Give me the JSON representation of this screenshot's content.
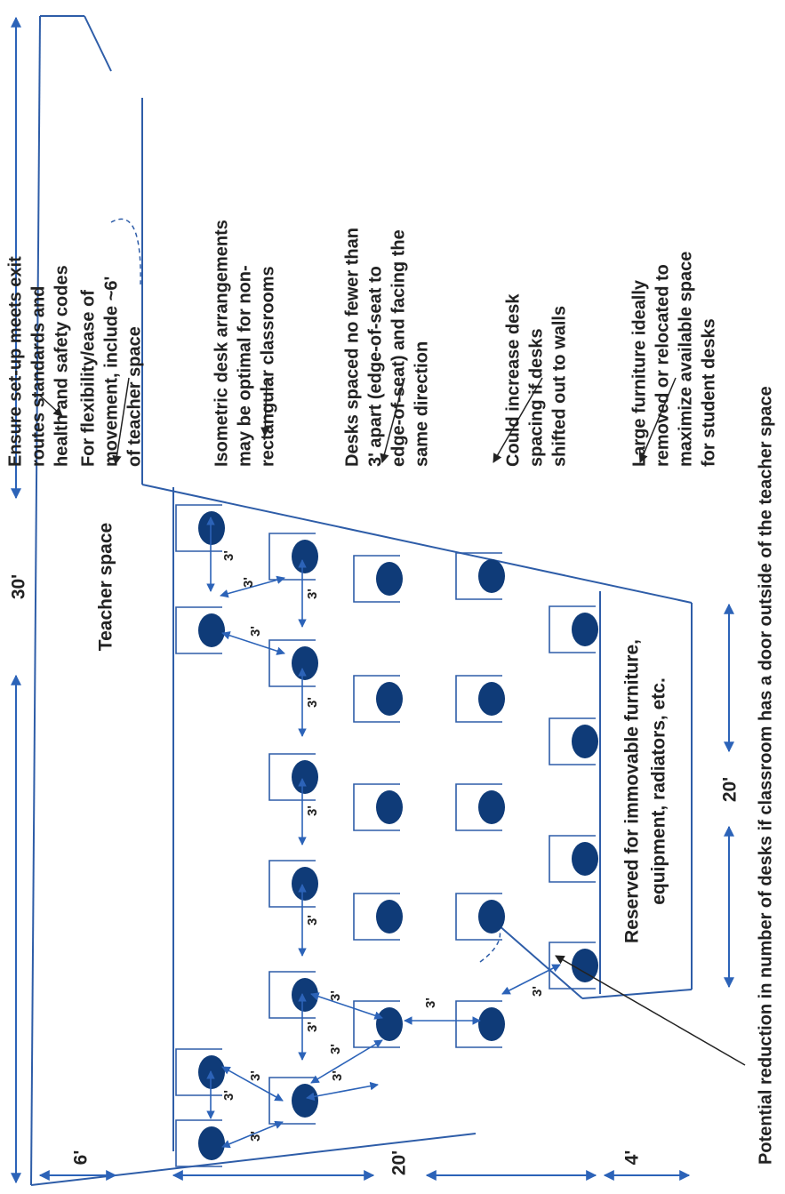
{
  "colors": {
    "outline": "#2e5da8",
    "student": "#0f3b78",
    "arrow": "#2c63b8",
    "text": "#222222"
  },
  "labels": {
    "teacher_space": "Teacher space",
    "reserved_line1": "Reserved for immovable furniture,",
    "reserved_line2": "equipment, radiators, etc."
  },
  "dimensions": {
    "room_width": "30'",
    "back_width": "20'",
    "teacher_depth": "6'",
    "desk_depth": "20'",
    "reserved_depth": "4'"
  },
  "spacing_label": "3'",
  "notes": [
    {
      "lines": [
        "Ensure set-up meets exit",
        "routes standards and",
        "health and safety codes"
      ]
    },
    {
      "lines": [
        "For flexibility/ease of",
        "movement, include ~6'",
        "of teacher space"
      ]
    },
    {
      "lines": [
        "Isometric desk arrangements",
        "may be optimal for non-",
        "rectangular classrooms"
      ]
    },
    {
      "lines": [
        "Desks spaced no fewer than",
        "3' apart (edge-of-seat to",
        "edge-of-seat) and facing the",
        "same direction"
      ]
    },
    {
      "lines": [
        "Could increase desk",
        "spacing if desks",
        "shifted out to walls"
      ]
    },
    {
      "lines": [
        "Large furniture ideally",
        "removed or relocated to",
        "maximize available space",
        "for student desks"
      ]
    },
    {
      "lines": [
        "Potential reduction in number of desks if classroom has a door outside of the teacher space"
      ]
    }
  ]
}
